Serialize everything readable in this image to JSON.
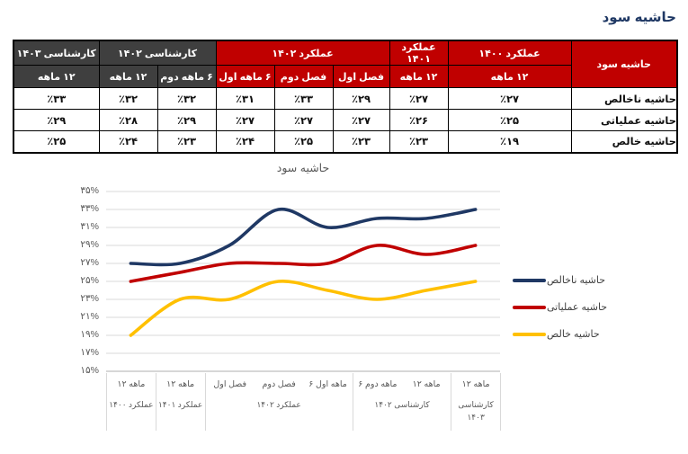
{
  "page": {
    "title": "حاشیه سود"
  },
  "colors": {
    "title_text": "#1F3864",
    "actual_header_bg": "#C00000",
    "forecast_header_bg": "#3F3F3F",
    "header_text": "#FFFFFF",
    "table_border": "#000000",
    "grid_line": "#D9D9D9",
    "axis_line": "#BFBFBF",
    "axis_text": "#595959",
    "series_gross": "#1F3864",
    "series_operating": "#C00000",
    "series_net": "#FFC000"
  },
  "table": {
    "corner_label": "حاشیه سود",
    "column_groups": [
      {
        "label": "عملکرد ۱۴۰۰",
        "style": "actual",
        "columns": [
          "۱۲ ماهه"
        ]
      },
      {
        "label": "عملکرد ۱۴۰۱",
        "style": "actual",
        "columns": [
          "۱۲ ماهه"
        ]
      },
      {
        "label": "عملکرد ۱۴۰۲",
        "style": "actual",
        "columns": [
          "فصل اول",
          "فصل دوم",
          "۶ ماهه اول"
        ]
      },
      {
        "label": "کارشناسی ۱۴۰۲",
        "style": "forecast",
        "columns": [
          "۶ ماهه دوم",
          "۱۲ ماهه"
        ]
      },
      {
        "label": "کارشناسی ۱۴۰۳",
        "style": "forecast",
        "columns": [
          "۱۲ ماهه"
        ]
      }
    ],
    "rows": [
      {
        "label": "حاشیه ناخالص",
        "values": [
          "٪۲۷",
          "٪۲۷",
          "٪۲۹",
          "٪۳۳",
          "٪۳۱",
          "٪۳۲",
          "٪۳۲",
          "٪۳۳"
        ]
      },
      {
        "label": "حاشیه عملیاتی",
        "values": [
          "٪۲۵",
          "٪۲۶",
          "٪۲۷",
          "٪۲۷",
          "٪۲۷",
          "٪۲۹",
          "٪۲۸",
          "٪۲۹"
        ]
      },
      {
        "label": "حاشیه خالص",
        "values": [
          "٪۱۹",
          "٪۲۳",
          "٪۲۳",
          "٪۲۵",
          "٪۲۴",
          "٪۲۳",
          "٪۲۴",
          "٪۲۵"
        ]
      }
    ]
  },
  "chart_data": {
    "type": "line",
    "title": "حاشیه سود",
    "smooth": true,
    "grid": true,
    "legend_position": "right",
    "categories": [
      "۱۲ ماهه",
      "۱۲ ماهه",
      "فصل اول",
      "فصل دوم",
      "۶ ماهه اول",
      "۶ ماهه دوم",
      "۱۲ ماهه",
      "۱۲ ماهه"
    ],
    "category_groups": [
      {
        "label": "عملکرد ۱۴۰۰",
        "span": 1
      },
      {
        "label": "عملکرد ۱۴۰۱",
        "span": 1
      },
      {
        "label": "عملکرد ۱۴۰۲",
        "span": 3
      },
      {
        "label": "کارشناسی ۱۴۰۲",
        "span": 2
      },
      {
        "label": "کارشناسی ۱۴۰۳",
        "span": 1
      }
    ],
    "series": [
      {
        "name": "حاشیه ناخالص",
        "color": "#1F3864",
        "values": [
          27,
          27,
          29,
          33,
          31,
          32,
          32,
          33
        ]
      },
      {
        "name": "حاشیه عملیاتی",
        "color": "#C00000",
        "values": [
          25,
          26,
          27,
          27,
          27,
          29,
          28,
          29
        ]
      },
      {
        "name": "حاشیه خالص",
        "color": "#FFC000",
        "values": [
          19,
          23,
          23,
          25,
          24,
          23,
          24,
          25
        ]
      }
    ],
    "ylim": [
      15,
      35
    ],
    "ytick_step": 2,
    "ytick_labels": [
      "۳۵%",
      "۳۳%",
      "۳۱%",
      "۲۹%",
      "۲۷%",
      "۲۵%",
      "۲۳%",
      "۲۱%",
      "۱۹%",
      "۱۷%",
      "۱۵%"
    ]
  }
}
